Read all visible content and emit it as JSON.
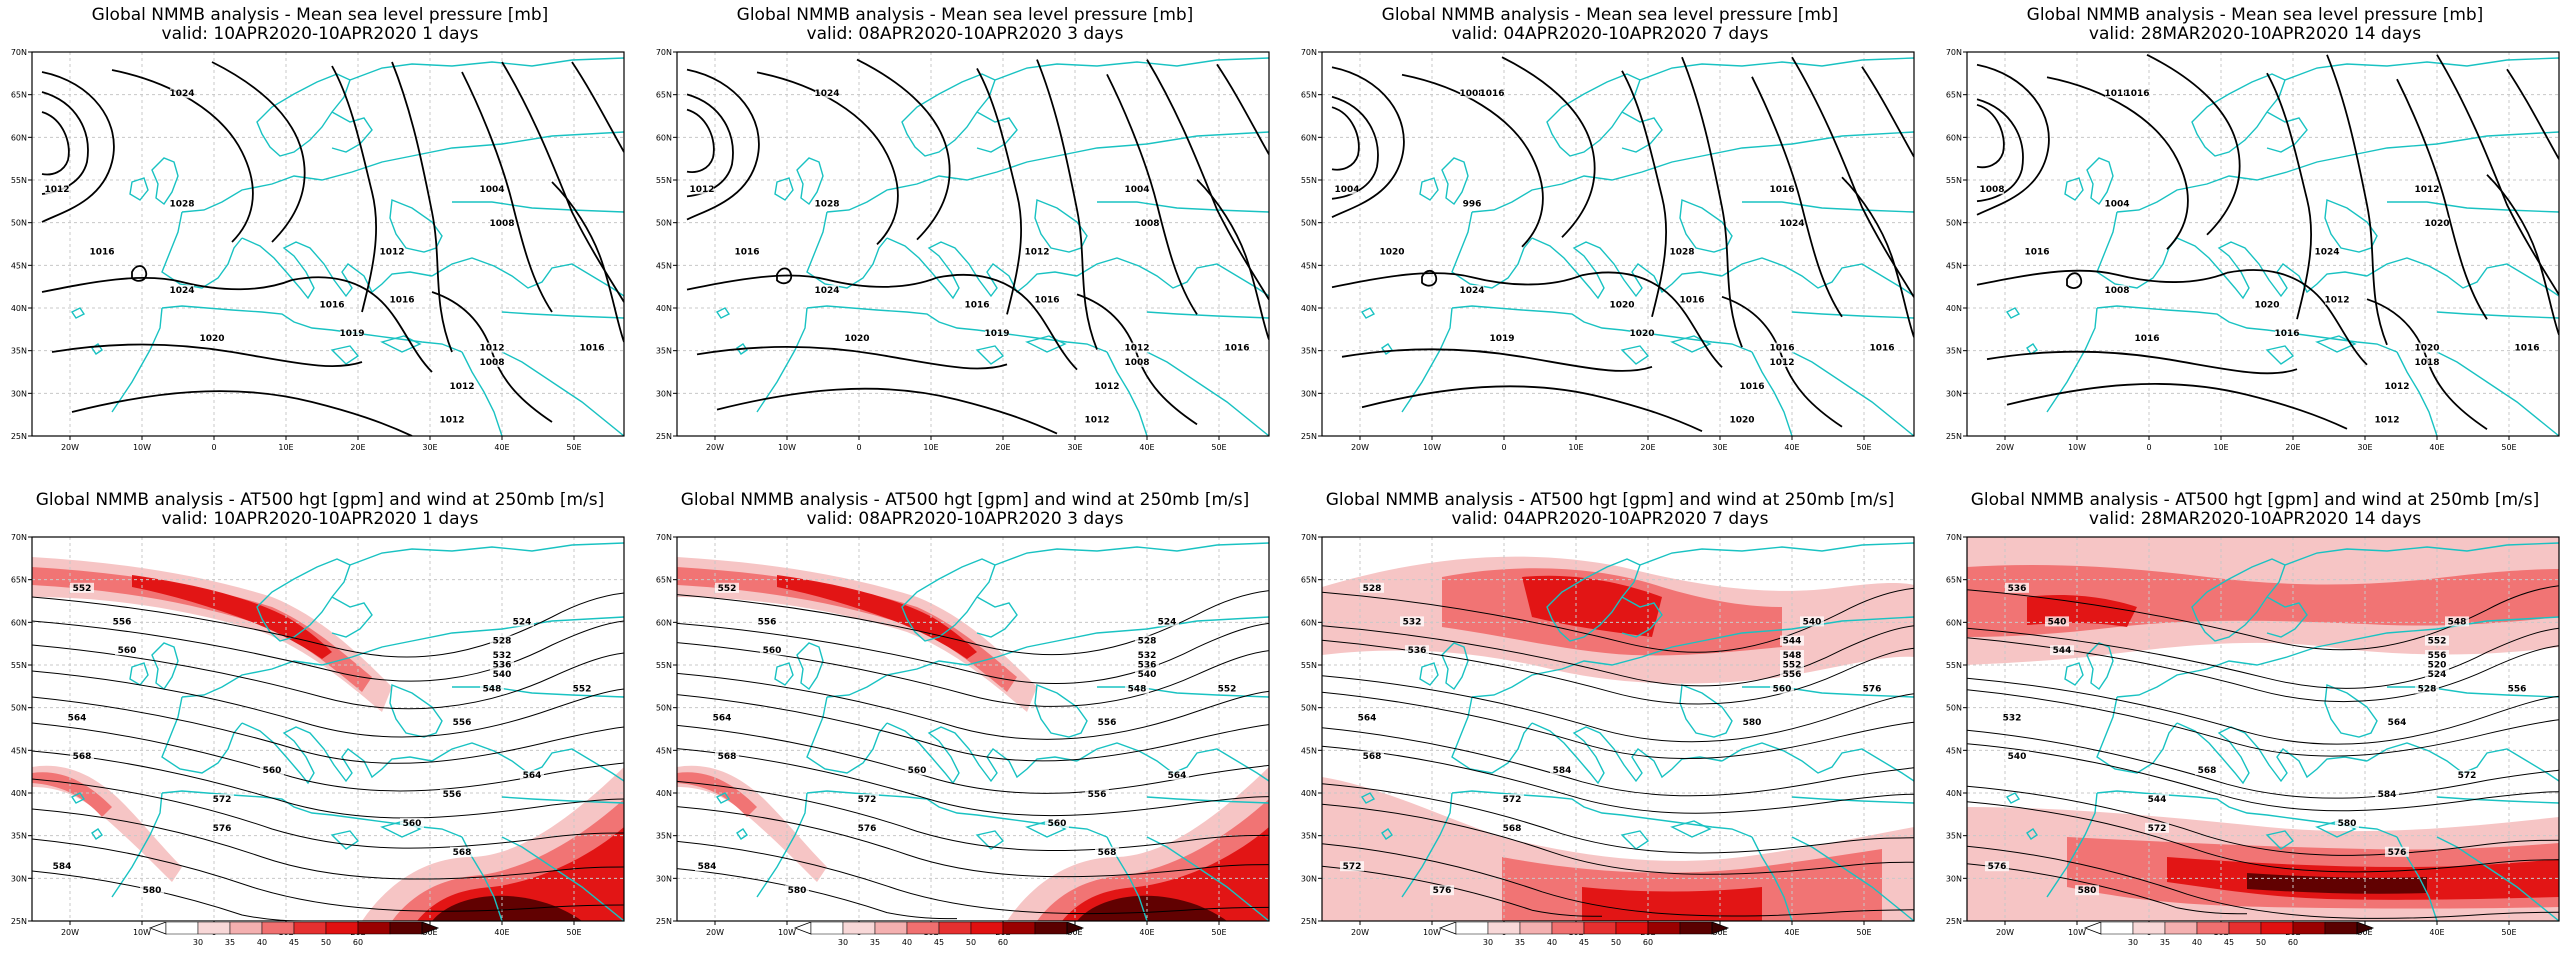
{
  "colors": {
    "coast": "#19c2c2",
    "contour": "#000000",
    "grid": "#c8c8c8",
    "wind_light": "#f6c2c2",
    "wind_mid": "#f07070",
    "wind_strong": "#e01010",
    "wind_extreme": "#5a0000"
  },
  "axes": {
    "x_ticks": [
      "20W",
      "10W",
      "0",
      "10E",
      "20E",
      "30E",
      "40E",
      "50E"
    ],
    "y_ticks": [
      "70N",
      "65N",
      "60N",
      "55N",
      "50N",
      "45N",
      "40N",
      "35N",
      "30N",
      "25N"
    ]
  },
  "colorbar": {
    "labels": [
      "30",
      "35",
      "40",
      "45",
      "50",
      "60"
    ]
  },
  "mslp_panels": [
    {
      "title": "Global NMMB analysis - Mean sea level pressure [mb]",
      "subtitle": "valid: 10APR2020-10APR2020   1 days",
      "labels": [
        "1024",
        "1012",
        "1028",
        "1016",
        "1004",
        "1008",
        "1012",
        "1024",
        "1016",
        "1020",
        "1019",
        "1012",
        "1008",
        "1016",
        "1016",
        "1012",
        "1012"
      ]
    },
    {
      "title": "Global NMMB analysis - Mean sea level pressure [mb]",
      "subtitle": "valid: 08APR2020-10APR2020   3 days",
      "labels": [
        "1024",
        "1012",
        "1028",
        "1016",
        "1004",
        "1008",
        "1012",
        "1024",
        "1016",
        "1020",
        "1019",
        "1012",
        "1008",
        "1016",
        "1016",
        "1012",
        "1012"
      ]
    },
    {
      "title": "Global NMMB analysis - Mean sea level pressure [mb]",
      "subtitle": "valid: 04APR2020-10APR2020   7 days",
      "labels": [
        "1008",
        "1004",
        "996",
        "1020",
        "1016",
        "1024",
        "1028",
        "1024",
        "1020",
        "1019",
        "1020",
        "1016",
        "1012",
        "1016",
        "1016",
        "1016",
        "1020",
        "1016"
      ]
    },
    {
      "title": "Global NMMB analysis - Mean sea level pressure [mb]",
      "subtitle": "valid: 28MAR2020-10APR2020   14 days",
      "labels": [
        "1018",
        "1008",
        "1004",
        "1016",
        "1012",
        "1020",
        "1024",
        "1008",
        "1020",
        "1016",
        "1016",
        "1020",
        "1018",
        "1012",
        "1016",
        "1012",
        "1012",
        "1016"
      ]
    }
  ],
  "z500_panels": [
    {
      "title": "Global NMMB analysis - AT500 hgt [gpm] and wind at 250mb [m/s]",
      "subtitle": "valid: 10APR2020-10APR2020   1 days",
      "labels": [
        "552",
        "556",
        "560",
        "524",
        "528",
        "532",
        "536",
        "540",
        "548",
        "564",
        "568",
        "572",
        "552",
        "556",
        "560",
        "576",
        "584",
        "580",
        "556",
        "560",
        "568",
        "564"
      ]
    },
    {
      "title": "Global NMMB analysis - AT500 hgt [gpm] and wind at 250mb [m/s]",
      "subtitle": "valid: 08APR2020-10APR2020   3 days",
      "labels": [
        "552",
        "556",
        "560",
        "524",
        "528",
        "532",
        "536",
        "540",
        "548",
        "564",
        "568",
        "572",
        "552",
        "556",
        "560",
        "576",
        "584",
        "580",
        "556",
        "560",
        "568",
        "564"
      ]
    },
    {
      "title": "Global NMMB analysis - AT500 hgt [gpm] and wind at 250mb [m/s]",
      "subtitle": "valid: 04APR2020-10APR2020   7 days",
      "labels": [
        "528",
        "532",
        "536",
        "540",
        "544",
        "548",
        "552",
        "556",
        "560",
        "564",
        "568",
        "572",
        "576",
        "580",
        "584",
        "568",
        "572",
        "576"
      ]
    },
    {
      "title": "Global NMMB analysis - AT500 hgt [gpm] and wind at 250mb [m/s]",
      "subtitle": "valid: 28MAR2020-10APR2020   14 days",
      "labels": [
        "536",
        "540",
        "544",
        "548",
        "552",
        "556",
        "520",
        "524",
        "528",
        "532",
        "540",
        "544",
        "556",
        "564",
        "568",
        "572",
        "576",
        "580",
        "584",
        "580",
        "576",
        "572"
      ]
    }
  ]
}
